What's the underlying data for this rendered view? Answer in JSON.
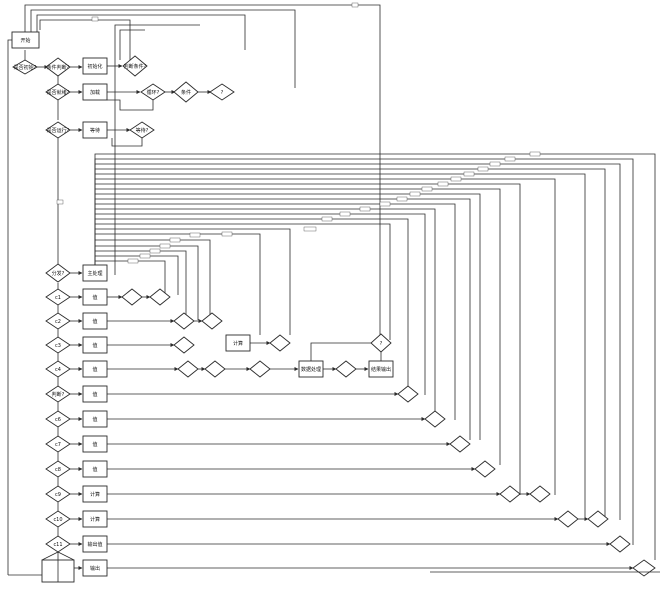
{
  "diagram": {
    "nodes": {
      "start": "开始",
      "init_check": "是否初始?",
      "cond_a": "条件判断?",
      "init_block": "初始化",
      "cond_b": "判断条件?",
      "cond_ready": "是否就绪?",
      "load": "加载",
      "cond_loop": "循环?",
      "cond_c": "条件",
      "cond_d": "?",
      "cond_run": "是否运行?",
      "wait": "等待",
      "cond_wait": "等待?",
      "dispatch": "分发?",
      "main_proc": "主处理",
      "c1": "c1",
      "c2": "c2",
      "c3": "c3",
      "c4": "c4",
      "c5": "判断?",
      "c6": "c6",
      "c7": "c7",
      "c8": "c8",
      "c9": "c9",
      "c10": "c10",
      "c11": "c11",
      "c12": "c12",
      "c13": "c13",
      "op1": "值",
      "op2": "值",
      "op3": "值",
      "op4": "值",
      "op5": "值",
      "op6": "值",
      "op7": "值",
      "op8": "值",
      "op9": "计算",
      "op10": "计算",
      "op11": "输出值",
      "op12": "输出",
      "calc_result": "计算结果",
      "end_check": "?",
      "process_box": "数据处理",
      "result_box": "结果输出",
      "sub_check": "?",
      "end": "结束"
    },
    "edge_labels": [
      "是",
      "否",
      "是",
      "否",
      "[1]",
      "[2]",
      "[3]",
      "[4]",
      "[5]",
      "[6]",
      "[7]",
      "[8]",
      "[9]",
      "[10]",
      "[11]",
      "[12]",
      "[13]"
    ]
  }
}
